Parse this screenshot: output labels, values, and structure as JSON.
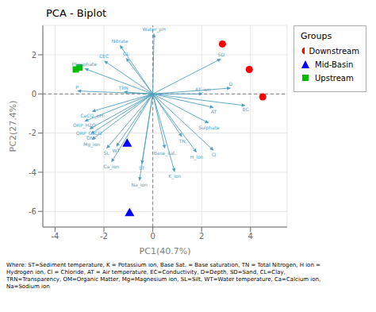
{
  "chart_data": {
    "type": "scatter",
    "title": "PCA - Biplot",
    "xlabel": "PC1(40.7%)",
    "ylabel": "PC2(27.4%)",
    "xlim": [
      -4.5,
      5.5
    ],
    "ylim": [
      -6.8,
      3.5
    ],
    "xticks": [
      -4,
      -2,
      0,
      2,
      4
    ],
    "yticks": [
      -6,
      -4,
      -2,
      0,
      2
    ],
    "grid": true,
    "legend": "right",
    "legend_title": "Groups",
    "series": [
      {
        "name": "Downstream",
        "color": "#FF0000",
        "marker": "circle",
        "x": [
          2.85,
          3.95,
          4.5
        ],
        "y": [
          2.55,
          1.25,
          -0.15
        ]
      },
      {
        "name": "Mid-Basin",
        "color": "#0000FF",
        "marker": "triangle",
        "x": [
          -1.05,
          -0.95
        ],
        "y": [
          -2.55,
          -6.1
        ]
      },
      {
        "name": "Upstream",
        "color": "#00BB00",
        "marker": "square",
        "x": [
          -3.0,
          -3.15
        ],
        "y": [
          1.35,
          1.25
        ]
      }
    ],
    "vectors": {
      "color": "#4F9EBF",
      "origin": [
        0,
        0
      ],
      "names": [
        "Water_pH",
        "Nitrate",
        "CEC",
        "CL",
        "Phosphate",
        "P",
        "TRN",
        "D",
        "AT_ion",
        "SD",
        "CaCl2_pH",
        "ORP_H2O",
        "ORP_CaCl2",
        "OM",
        "Mg_ion",
        "SL",
        "WT",
        "Ca_ion",
        "ST",
        "Na_ion",
        "K_ion",
        "Base_sat.",
        "H_ion",
        "Cl",
        "TN",
        "Sulphate",
        "AT",
        "EC"
      ],
      "x": [
        0.05,
        -1.35,
        -2.0,
        -1.1,
        -2.8,
        -3.1,
        -1.2,
        3.2,
        2.05,
        2.8,
        -2.5,
        -2.8,
        -2.6,
        -2.55,
        -2.5,
        -1.9,
        -1.5,
        -1.7,
        -0.45,
        -0.55,
        0.9,
        0.5,
        1.8,
        2.5,
        1.2,
        2.3,
        2.5,
        3.8
      ],
      "y": [
        3.1,
        2.5,
        1.7,
        1.85,
        1.3,
        0.15,
        0.1,
        0.3,
        0.0,
        1.8,
        -0.9,
        -1.4,
        -1.8,
        -2.05,
        -2.35,
        -2.8,
        -2.7,
        -3.5,
        -3.6,
        -4.45,
        -4.0,
        -2.8,
        -3.0,
        -2.9,
        -2.2,
        -1.5,
        -0.7,
        -0.6
      ]
    },
    "footnote": "Where: ST=Sediment temperature, K = Potassium ion, Base Sat. = Base saturation, TN = Total Nitrogen, H ion =\nHydrogen ion, Cl = Chloride, AT = Air temperature, EC=Conductivity, D=Depth, SD=Sand, CL=Clay,\nTRN=Transparency, OM=Organic Matter, Mg=Magnesium ion, SL=Silt, WT=Water temperature, Ca=Calcium ion,\nNa=Sodium ion"
  }
}
